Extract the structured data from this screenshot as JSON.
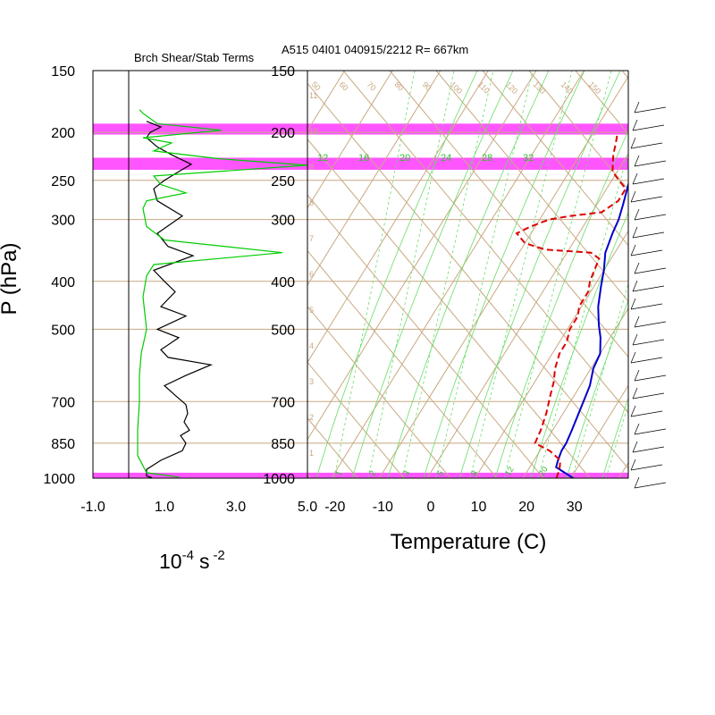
{
  "chart_data": {
    "type": "line",
    "header": "A515 04I01 040915/2212 R= 667km",
    "y_axis": {
      "label": "P (hPa)",
      "scale": "log",
      "range": [
        1000,
        150
      ],
      "ticks": [
        "150",
        "200",
        "250",
        "300",
        "400",
        "500",
        "700",
        "850",
        "1000"
      ],
      "tick_values": [
        150,
        200,
        250,
        300,
        400,
        500,
        700,
        850,
        1000
      ]
    },
    "highlight_layers_hpa": [
      [
        192,
        202
      ],
      [
        225,
        238
      ],
      [
        975,
        998
      ]
    ],
    "highlight_color": "#ff55ff",
    "left_panel": {
      "title": "Brch Shear/Stab Terms",
      "xlabel_base": "10",
      "xlabel_exp": "-4",
      "xlabel_unit": "s",
      "xlabel_unit_exp": "-2",
      "xlim": [
        -1.0,
        5.0
      ],
      "x_ticks": [
        "-1.0",
        "1.0",
        "3.0",
        "5.0"
      ],
      "x_tick_values": [
        -1.0,
        1.0,
        3.0,
        5.0
      ],
      "zero_line": 0.0,
      "series": [
        {
          "color": "#000000",
          "points": [
            [
              0.65,
              998
            ],
            [
              0.5,
              990
            ],
            [
              0.5,
              960
            ],
            [
              0.9,
              920
            ],
            [
              1.5,
              880
            ],
            [
              1.6,
              850
            ],
            [
              1.45,
              820
            ],
            [
              1.7,
              800
            ],
            [
              1.55,
              770
            ],
            [
              1.65,
              740
            ],
            [
              1.6,
              710
            ],
            [
              1.3,
              680
            ],
            [
              1.0,
              650
            ],
            [
              1.6,
              620
            ],
            [
              2.3,
              590
            ],
            [
              1.1,
              570
            ],
            [
              0.9,
              550
            ],
            [
              1.4,
              520
            ],
            [
              0.8,
              500
            ],
            [
              1.6,
              470
            ],
            [
              0.9,
              450
            ],
            [
              1.3,
              420
            ],
            [
              1.0,
              400
            ],
            [
              0.7,
              380
            ],
            [
              1.8,
              355
            ],
            [
              1.1,
              340
            ],
            [
              0.8,
              320
            ],
            [
              1.5,
              295
            ],
            [
              0.8,
              275
            ],
            [
              0.7,
              260
            ],
            [
              1.0,
              250
            ],
            [
              1.4,
              240
            ],
            [
              1.75,
              232
            ],
            [
              1.2,
              222
            ],
            [
              0.8,
              214
            ],
            [
              0.5,
              205
            ],
            [
              0.6,
              200
            ],
            [
              0.9,
              195
            ],
            [
              0.5,
              190
            ]
          ]
        },
        {
          "color": "#00cc00",
          "points": [
            [
              1.4,
              995
            ],
            [
              0.5,
              975
            ],
            [
              0.25,
              900
            ],
            [
              0.25,
              800
            ],
            [
              0.3,
              700
            ],
            [
              0.3,
              620
            ],
            [
              0.35,
              560
            ],
            [
              0.5,
              500
            ],
            [
              0.4,
              430
            ],
            [
              0.5,
              390
            ],
            [
              0.7,
              370
            ],
            [
              4.3,
              350
            ],
            [
              1.0,
              330
            ],
            [
              0.5,
              310
            ],
            [
              0.4,
              285
            ],
            [
              0.5,
              275
            ],
            [
              1.6,
              265
            ],
            [
              0.9,
              255
            ],
            [
              0.7,
              245
            ],
            [
              5.0,
              233
            ],
            [
              2.5,
              226
            ],
            [
              0.7,
              218
            ],
            [
              1.2,
              210
            ],
            [
              0.4,
              205
            ],
            [
              2.6,
              198
            ],
            [
              0.8,
              192
            ],
            [
              0.4,
              183
            ],
            [
              0.3,
              180
            ]
          ]
        }
      ]
    },
    "right_panel": {
      "xlabel": "Temperature (C)",
      "xlim": [
        -25,
        42
      ],
      "x_ticks": [
        "-20",
        "-10",
        "0",
        "10",
        "20",
        "30"
      ],
      "x_tick_values": [
        -20,
        -10,
        0,
        10,
        20,
        30
      ],
      "isotherm_spacing_C": 10,
      "dry_adiabat_labels": [
        "50",
        "60",
        "70",
        "80",
        "90",
        "100",
        "110",
        "120",
        "130",
        "140",
        "150"
      ],
      "mixing_ratio_labels": [
        "12",
        "16",
        "20",
        "24",
        "28",
        "32"
      ],
      "mixing_ratio_bottom_labels": [
        "1",
        "2",
        "3",
        "5",
        "8",
        "12",
        "20"
      ],
      "height_labels": [
        "1",
        "2",
        "3",
        "4",
        "5",
        "6",
        "7",
        "8",
        "9",
        "10",
        "11"
      ],
      "series": [
        {
          "name": "temperature",
          "color": "#0000cc",
          "points": [
            [
              30.5,
              1000
            ],
            [
              28,
              975
            ],
            [
              25.5,
              950
            ],
            [
              25,
              920
            ],
            [
              24.5,
              880
            ],
            [
              24.5,
              850
            ],
            [
              24,
              800
            ],
            [
              23,
              720
            ],
            [
              22,
              650
            ],
            [
              20.5,
              600
            ],
            [
              20,
              560
            ],
            [
              18,
              520
            ],
            [
              16,
              490
            ],
            [
              13.5,
              450
            ],
            [
              11.5,
              410
            ],
            [
              10,
              380
            ],
            [
              8,
              350
            ],
            [
              7,
              320
            ],
            [
              6.5,
              300
            ],
            [
              5.5,
              280
            ],
            [
              4,
              255
            ],
            [
              3,
              235
            ],
            [
              2,
              220
            ],
            [
              0.5,
              200
            ],
            [
              -0.5,
              180
            ]
          ]
        },
        {
          "name": "dewpoint",
          "color": "#dd0000",
          "points": [
            [
              27,
              1000
            ],
            [
              26.5,
              960
            ],
            [
              25.5,
              920
            ],
            [
              22,
              880
            ],
            [
              18,
              850
            ],
            [
              17.5,
              800
            ],
            [
              16.5,
              740
            ],
            [
              15,
              680
            ],
            [
              14,
              640
            ],
            [
              12.5,
              600
            ],
            [
              11.5,
              560
            ],
            [
              11.5,
              530
            ],
            [
              10.5,
              500
            ],
            [
              10.5,
              470
            ],
            [
              9.5,
              450
            ],
            [
              9.5,
              420
            ],
            [
              8.5,
              400
            ],
            [
              8,
              380
            ],
            [
              7.5,
              360
            ],
            [
              5,
              350
            ],
            [
              -5,
              345
            ],
            [
              -10,
              335
            ],
            [
              -13,
              320
            ],
            [
              -11,
              310
            ],
            [
              -8,
              300
            ],
            [
              -4,
              295
            ],
            [
              2,
              290
            ],
            [
              4,
              275
            ],
            [
              4,
              260
            ],
            [
              1.5,
              250
            ],
            [
              -1,
              240
            ],
            [
              -3,
              222
            ],
            [
              -4,
              210
            ],
            [
              -5,
              200
            ]
          ]
        }
      ]
    },
    "wind_barbs": "right-edge"
  }
}
